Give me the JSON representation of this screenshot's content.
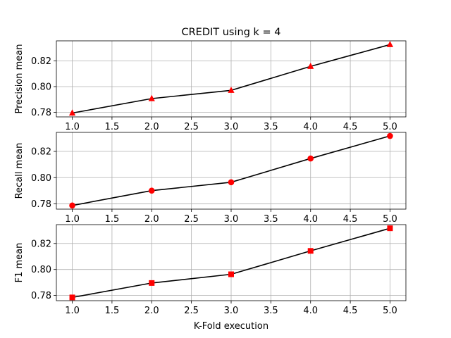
{
  "chart_data": {
    "type": "line",
    "title": "CREDIT using k = 4",
    "xlabel": "K-Fold execution",
    "x": [
      1.0,
      2.0,
      3.0,
      4.0,
      5.0
    ],
    "xlim": [
      0.8,
      5.2
    ],
    "xticks": [
      "1.0",
      "1.5",
      "2.0",
      "2.5",
      "3.0",
      "3.5",
      "4.0",
      "4.5",
      "5.0"
    ],
    "grid": true,
    "line_color": "#000000",
    "marker_color": "#ff0000",
    "panels": [
      {
        "ylabel": "Precision mean",
        "marker": "triangle",
        "values": [
          0.7795,
          0.7907,
          0.7971,
          0.8157,
          0.8326
        ],
        "ylim": [
          0.7765,
          0.8355
        ],
        "yticks": [
          "0.78",
          "0.80",
          "0.82"
        ]
      },
      {
        "ylabel": "Recall mean",
        "marker": "circle",
        "values": [
          0.7788,
          0.7901,
          0.7965,
          0.8146,
          0.8318
        ],
        "ylim": [
          0.776,
          0.8345
        ],
        "yticks": [
          "0.78",
          "0.80",
          "0.82"
        ]
      },
      {
        "ylabel": "F1 mean",
        "marker": "square",
        "values": [
          0.7785,
          0.7896,
          0.7963,
          0.8143,
          0.8317
        ],
        "ylim": [
          0.776,
          0.8345
        ],
        "yticks": [
          "0.78",
          "0.80",
          "0.82"
        ]
      }
    ]
  }
}
